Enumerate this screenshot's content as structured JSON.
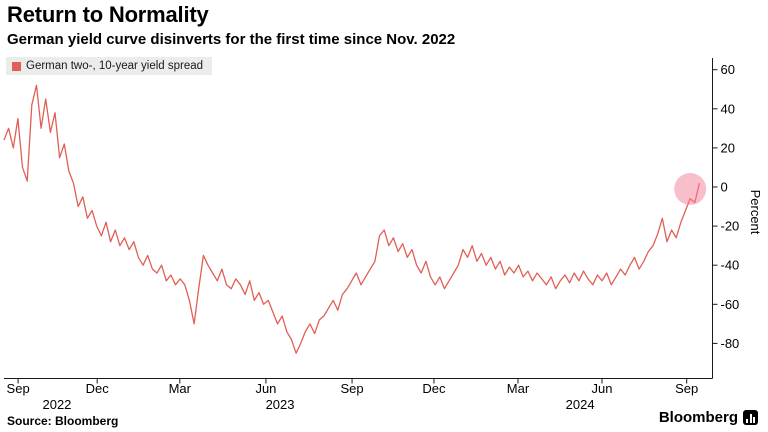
{
  "header": {
    "title": "Return to Normality",
    "subtitle": "German yield curve disinverts for the first time since Nov. 2022"
  },
  "legend": {
    "label": "German two-, 10-year yield spread",
    "swatch_color": "#e05f56"
  },
  "source": {
    "text": "Source: Bloomberg"
  },
  "logo": {
    "text": "Bloomberg"
  },
  "chart_data": {
    "type": "line",
    "title": "Return to Normality",
    "subtitle": "German yield curve disinverts for the first time since Nov. 2022",
    "ylabel": "Percent",
    "ylim": [
      -95,
      68
    ],
    "yticks": [
      60,
      40,
      20,
      0,
      -20,
      -40,
      -60,
      -80
    ],
    "grid": false,
    "legend_position": "top-left",
    "line_color": "#e05f56",
    "xticks": [
      {
        "label": "Sep",
        "pos": 0.02
      },
      {
        "label": "Dec",
        "pos": 0.132
      },
      {
        "label": "Mar",
        "pos": 0.249
      },
      {
        "label": "Jun",
        "pos": 0.371
      },
      {
        "label": "Sep",
        "pos": 0.493
      },
      {
        "label": "Dec",
        "pos": 0.609
      },
      {
        "label": "Mar",
        "pos": 0.728
      },
      {
        "label": "Jun",
        "pos": 0.847
      },
      {
        "label": "Sep",
        "pos": 0.967
      }
    ],
    "year_labels": [
      {
        "label": "2022",
        "pos": 0.075
      },
      {
        "label": "2023",
        "pos": 0.391
      },
      {
        "label": "2024",
        "pos": 0.816
      }
    ],
    "highlight": {
      "x_frac": 0.972,
      "value": -1,
      "radius": 16,
      "color": "rgba(244,126,151,0.5)",
      "meaning": "disinversion point near zero"
    },
    "series": [
      {
        "name": "German two-, 10-year yield spread",
        "values": [
          24,
          30,
          20,
          35,
          10,
          3,
          42,
          52,
          30,
          45,
          28,
          38,
          15,
          22,
          8,
          2,
          -10,
          -5,
          -16,
          -12,
          -20,
          -25,
          -18,
          -28,
          -22,
          -30,
          -26,
          -32,
          -28,
          -36,
          -40,
          -35,
          -42,
          -44,
          -40,
          -48,
          -45,
          -50,
          -47,
          -50,
          -58,
          -70,
          -52,
          -35,
          -40,
          -44,
          -48,
          -42,
          -50,
          -52,
          -47,
          -50,
          -55,
          -48,
          -58,
          -54,
          -60,
          -58,
          -64,
          -70,
          -66,
          -74,
          -78,
          -85,
          -80,
          -74,
          -70,
          -75,
          -68,
          -66,
          -62,
          -58,
          -63,
          -55,
          -52,
          -48,
          -44,
          -50,
          -46,
          -42,
          -38,
          -25,
          -22,
          -30,
          -26,
          -33,
          -29,
          -36,
          -32,
          -40,
          -44,
          -38,
          -46,
          -50,
          -46,
          -52,
          -48,
          -44,
          -40,
          -32,
          -36,
          -30,
          -38,
          -34,
          -40,
          -36,
          -42,
          -38,
          -45,
          -41,
          -44,
          -40,
          -46,
          -43,
          -48,
          -44,
          -47,
          -50,
          -46,
          -52,
          -48,
          -45,
          -49,
          -44,
          -48,
          -43,
          -47,
          -50,
          -45,
          -48,
          -44,
          -50,
          -46,
          -42,
          -45,
          -40,
          -36,
          -42,
          -38,
          -33,
          -30,
          -24,
          -16,
          -28,
          -22,
          -26,
          -18,
          -12,
          -6,
          -8,
          2
        ]
      }
    ]
  }
}
